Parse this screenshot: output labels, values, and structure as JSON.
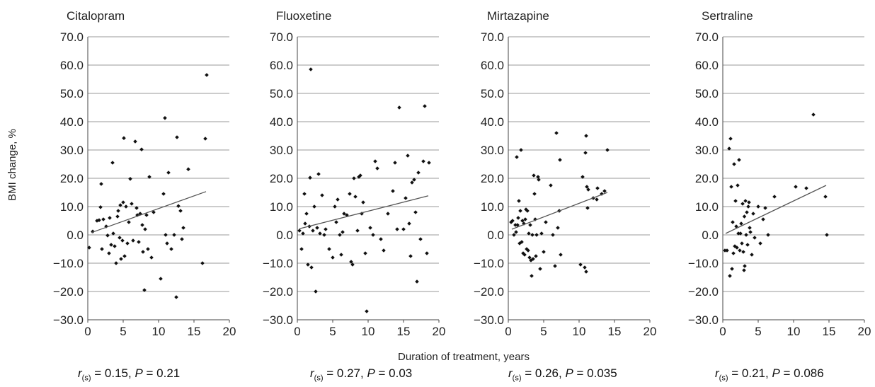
{
  "chart_data": [
    {
      "type": "scatter",
      "title": "Citalopram",
      "xlim": [
        0,
        20
      ],
      "ylim": [
        -30,
        70
      ],
      "xticks": [
        "0",
        "5",
        "10",
        "15",
        "20"
      ],
      "yticks": [
        "70.0",
        "60.0",
        "50.0",
        "40.0",
        "30.0",
        "20.0",
        "10.0",
        "0.0",
        "−10.0",
        "−20.0",
        "−30.0"
      ],
      "grid": "horizontal",
      "trendline": [
        [
          0.5,
          0.8
        ],
        [
          16.7,
          15.3
        ]
      ],
      "stat": {
        "r": "r",
        "sub": "(s)",
        "r_value": "= 0.15,",
        "p": "P",
        "p_value": "= 0.21"
      },
      "points": [
        [
          0.2,
          -4.5
        ],
        [
          0.7,
          1.2
        ],
        [
          1.3,
          5
        ],
        [
          1.6,
          5.2
        ],
        [
          1.8,
          9.8
        ],
        [
          1.9,
          18
        ],
        [
          2,
          -5
        ],
        [
          2.2,
          5.5
        ],
        [
          2.6,
          3
        ],
        [
          2.8,
          -0.2
        ],
        [
          3,
          -6.5
        ],
        [
          3.1,
          6
        ],
        [
          3.3,
          -3.5
        ],
        [
          3.5,
          25.5
        ],
        [
          3.6,
          0.5
        ],
        [
          3.8,
          -4
        ],
        [
          4,
          -10
        ],
        [
          4.2,
          6.5
        ],
        [
          4.3,
          8.5
        ],
        [
          4.5,
          -1
        ],
        [
          4.6,
          10.5
        ],
        [
          4.7,
          -8.5
        ],
        [
          4.9,
          -2
        ],
        [
          5,
          11.5
        ],
        [
          5.1,
          34.2
        ],
        [
          5.2,
          -7.5
        ],
        [
          5.4,
          10
        ],
        [
          5.6,
          -3
        ],
        [
          5.8,
          4.5
        ],
        [
          6,
          19.8
        ],
        [
          6.2,
          11
        ],
        [
          6.4,
          -2
        ],
        [
          6.7,
          33
        ],
        [
          6.9,
          9.5
        ],
        [
          7,
          7
        ],
        [
          7.2,
          -2.5
        ],
        [
          7.4,
          7.5
        ],
        [
          7.6,
          30.2
        ],
        [
          7.7,
          3.5
        ],
        [
          7.8,
          -6
        ],
        [
          8,
          -19.5
        ],
        [
          8.1,
          2
        ],
        [
          8.3,
          7
        ],
        [
          8.5,
          -5
        ],
        [
          8.7,
          20.5
        ],
        [
          9,
          -8
        ],
        [
          9.3,
          8
        ],
        [
          10.3,
          -15.5
        ],
        [
          10.7,
          14.5
        ],
        [
          10.9,
          41.3
        ],
        [
          11,
          0
        ],
        [
          11.2,
          -3
        ],
        [
          11.4,
          22
        ],
        [
          11.8,
          -5
        ],
        [
          12.2,
          0
        ],
        [
          12.5,
          -22
        ],
        [
          12.6,
          34.5
        ],
        [
          12.8,
          10.2
        ],
        [
          13.1,
          8.5
        ],
        [
          13.3,
          -1.5
        ],
        [
          13.5,
          2.5
        ],
        [
          14.2,
          23.2
        ],
        [
          16.2,
          -10
        ],
        [
          16.6,
          34
        ],
        [
          16.8,
          56.5
        ]
      ]
    },
    {
      "type": "scatter",
      "title": "Fluoxetine",
      "xlim": [
        0,
        20
      ],
      "ylim": [
        -30,
        70
      ],
      "xticks": [
        "0",
        "5",
        "10",
        "15",
        "20"
      ],
      "yticks": [
        "70.0",
        "60.0",
        "50.0",
        "40.0",
        "30.0",
        "20.0",
        "10.0",
        "0.0",
        "−10.0",
        "−20.0",
        "−30.0"
      ],
      "grid": "horizontal",
      "trendline": [
        [
          0.3,
          2.2
        ],
        [
          18.5,
          13.8
        ]
      ],
      "stat": {
        "r": "r",
        "sub": "(s)",
        "r_value": "= 0.27,",
        "p": "P",
        "p_value": "= 0.03"
      },
      "points": [
        [
          0.3,
          1.5
        ],
        [
          0.6,
          -5
        ],
        [
          0.8,
          0.5
        ],
        [
          1,
          14.5
        ],
        [
          1.1,
          4
        ],
        [
          1.3,
          7.5
        ],
        [
          1.5,
          -10.5
        ],
        [
          1.7,
          3
        ],
        [
          1.8,
          20.2
        ],
        [
          1.9,
          58.5
        ],
        [
          2,
          -11.5
        ],
        [
          2.2,
          1.5
        ],
        [
          2.4,
          10
        ],
        [
          2.6,
          -20
        ],
        [
          2.8,
          2.5
        ],
        [
          3,
          21.5
        ],
        [
          3.2,
          0.5
        ],
        [
          3.5,
          14
        ],
        [
          3.8,
          0
        ],
        [
          4,
          2
        ],
        [
          4.5,
          -5
        ],
        [
          5,
          -8
        ],
        [
          5.3,
          10
        ],
        [
          5.5,
          4.5
        ],
        [
          5.7,
          12.5
        ],
        [
          6,
          0
        ],
        [
          6.2,
          -7
        ],
        [
          6.4,
          1
        ],
        [
          6.6,
          7.5
        ],
        [
          7,
          7
        ],
        [
          7.4,
          14.5
        ],
        [
          7.6,
          -9.5
        ],
        [
          7.8,
          -10.5
        ],
        [
          8,
          20
        ],
        [
          8.2,
          13.5
        ],
        [
          8.5,
          1.5
        ],
        [
          8.7,
          20.5
        ],
        [
          8.9,
          21
        ],
        [
          9.1,
          7.5
        ],
        [
          9.3,
          11.5
        ],
        [
          9.6,
          -6.5
        ],
        [
          9.8,
          -27
        ],
        [
          10.3,
          2.5
        ],
        [
          10.7,
          0
        ],
        [
          11,
          26
        ],
        [
          11.3,
          23.5
        ],
        [
          11.8,
          -1.5
        ],
        [
          12.2,
          -5.5
        ],
        [
          12.8,
          7.5
        ],
        [
          13.5,
          15.5
        ],
        [
          13.8,
          25.5
        ],
        [
          14.1,
          2
        ],
        [
          14.4,
          45
        ],
        [
          15,
          2
        ],
        [
          15.3,
          13
        ],
        [
          15.6,
          28
        ],
        [
          15.8,
          4
        ],
        [
          16,
          -7.5
        ],
        [
          16.2,
          18.5
        ],
        [
          16.5,
          19.5
        ],
        [
          16.7,
          8
        ],
        [
          16.9,
          -16.5
        ],
        [
          17.1,
          22
        ],
        [
          17.4,
          -1.5
        ],
        [
          17.8,
          26
        ],
        [
          18,
          45.5
        ],
        [
          18.3,
          -6.5
        ],
        [
          18.6,
          25.5
        ]
      ]
    },
    {
      "type": "scatter",
      "title": "Mirtazapine",
      "xlim": [
        0,
        20
      ],
      "ylim": [
        -30,
        70
      ],
      "xticks": [
        "0",
        "5",
        "10",
        "15",
        "20"
      ],
      "yticks": [
        "70.0",
        "60.0",
        "50.0",
        "40.0",
        "30.0",
        "20.0",
        "10.0",
        "0.0",
        "−10.0",
        "−20.0",
        "−30.0"
      ],
      "grid": "horizontal",
      "trendline": [
        [
          0.5,
          2
        ],
        [
          14,
          15
        ]
      ],
      "stat": {
        "r": "r",
        "sub": "(s)",
        "r_value": "= 0.26,",
        "p": "P",
        "p_value": "= 0.035"
      },
      "points": [
        [
          0.4,
          4.5
        ],
        [
          0.6,
          5
        ],
        [
          0.8,
          0
        ],
        [
          1,
          3.5
        ],
        [
          1.1,
          1
        ],
        [
          1.2,
          27.5
        ],
        [
          1.3,
          3.5
        ],
        [
          1.4,
          6
        ],
        [
          1.5,
          12
        ],
        [
          1.6,
          -3
        ],
        [
          1.7,
          8.5
        ],
        [
          1.8,
          30
        ],
        [
          1.9,
          -2.5
        ],
        [
          2,
          5
        ],
        [
          2.1,
          -6.5
        ],
        [
          2.2,
          4
        ],
        [
          2.3,
          -7
        ],
        [
          2.4,
          5.5
        ],
        [
          2.5,
          9
        ],
        [
          2.6,
          -5
        ],
        [
          2.7,
          8.5
        ],
        [
          2.8,
          -5.5
        ],
        [
          2.9,
          0.5
        ],
        [
          3,
          -8
        ],
        [
          3.1,
          3.5
        ],
        [
          3.2,
          -9
        ],
        [
          3.3,
          -14.5
        ],
        [
          3.4,
          0
        ],
        [
          3.5,
          -8.5
        ],
        [
          3.6,
          21
        ],
        [
          3.7,
          14.5
        ],
        [
          3.8,
          5.5
        ],
        [
          3.9,
          -7.5
        ],
        [
          4,
          0
        ],
        [
          4.2,
          20.5
        ],
        [
          4.3,
          19.5
        ],
        [
          4.5,
          -12
        ],
        [
          4.7,
          0.5
        ],
        [
          5,
          -6
        ],
        [
          5.3,
          4.5
        ],
        [
          6,
          17.5
        ],
        [
          6.3,
          0
        ],
        [
          6.6,
          -11
        ],
        [
          6.8,
          36
        ],
        [
          7,
          2.5
        ],
        [
          7.2,
          8.5
        ],
        [
          7.3,
          26.5
        ],
        [
          7.4,
          -7
        ],
        [
          10.2,
          -10.5
        ],
        [
          10.5,
          20.5
        ],
        [
          10.8,
          -11.5
        ],
        [
          10.9,
          29
        ],
        [
          11,
          35
        ],
        [
          11,
          -13
        ],
        [
          11.1,
          17
        ],
        [
          11.2,
          9.5
        ],
        [
          11.3,
          16
        ],
        [
          12,
          13
        ],
        [
          12.5,
          12.5
        ],
        [
          12.6,
          16.5
        ],
        [
          13.2,
          14.5
        ],
        [
          13.6,
          15.5
        ],
        [
          14,
          30
        ]
      ]
    },
    {
      "type": "scatter",
      "title": "Sertraline",
      "xlim": [
        0,
        20
      ],
      "ylim": [
        -30,
        70
      ],
      "xticks": [
        "0",
        "5",
        "10",
        "15",
        "20"
      ],
      "yticks": [
        "70.0",
        "60.0",
        "50.0",
        "40.0",
        "30.0",
        "20.0",
        "10.0",
        "0.0",
        "−10.0",
        "−20.0",
        "−30.0"
      ],
      "grid": "horizontal",
      "trendline": [
        [
          0.4,
          0.5
        ],
        [
          14.6,
          17.5
        ]
      ],
      "stat": {
        "r": "r",
        "sub": "(s)",
        "r_value": "= 0.21,",
        "p": "P",
        "p_value": "= 0.086"
      },
      "points": [
        [
          0.3,
          -5.5
        ],
        [
          0.6,
          -5.5
        ],
        [
          0.9,
          30.5
        ],
        [
          1,
          -14.5
        ],
        [
          1.1,
          34
        ],
        [
          1.2,
          17
        ],
        [
          1.3,
          -12
        ],
        [
          1.4,
          4.5
        ],
        [
          1.5,
          -6.5
        ],
        [
          1.6,
          25
        ],
        [
          1.7,
          -4
        ],
        [
          1.8,
          12
        ],
        [
          1.9,
          3
        ],
        [
          2,
          -4.5
        ],
        [
          2.1,
          17.5
        ],
        [
          2.2,
          0.5
        ],
        [
          2.3,
          26.5
        ],
        [
          2.4,
          -5.5
        ],
        [
          2.5,
          0.5
        ],
        [
          2.6,
          4
        ],
        [
          2.7,
          -3
        ],
        [
          2.8,
          11
        ],
        [
          2.9,
          -6
        ],
        [
          3,
          -12.5
        ],
        [
          3.05,
          6.5
        ],
        [
          3.1,
          -11
        ],
        [
          3.2,
          12
        ],
        [
          3.3,
          0
        ],
        [
          3.4,
          8
        ],
        [
          3.5,
          -3.5
        ],
        [
          3.6,
          10
        ],
        [
          3.7,
          11.5
        ],
        [
          3.8,
          2.5
        ],
        [
          3.9,
          1
        ],
        [
          4.1,
          -7
        ],
        [
          4.3,
          7.5
        ],
        [
          4.5,
          -1
        ],
        [
          5,
          10
        ],
        [
          5.3,
          -3
        ],
        [
          5.7,
          5.5
        ],
        [
          6,
          9.5
        ],
        [
          6.4,
          0
        ],
        [
          7.3,
          13.5
        ],
        [
          10.3,
          17
        ],
        [
          11.8,
          16.5
        ],
        [
          12.8,
          42.5
        ],
        [
          14.5,
          13.5
        ],
        [
          14.7,
          0
        ]
      ]
    }
  ],
  "shared": {
    "ylabel": "BMI change, %",
    "xlabel": "Duration of treatment, years"
  }
}
